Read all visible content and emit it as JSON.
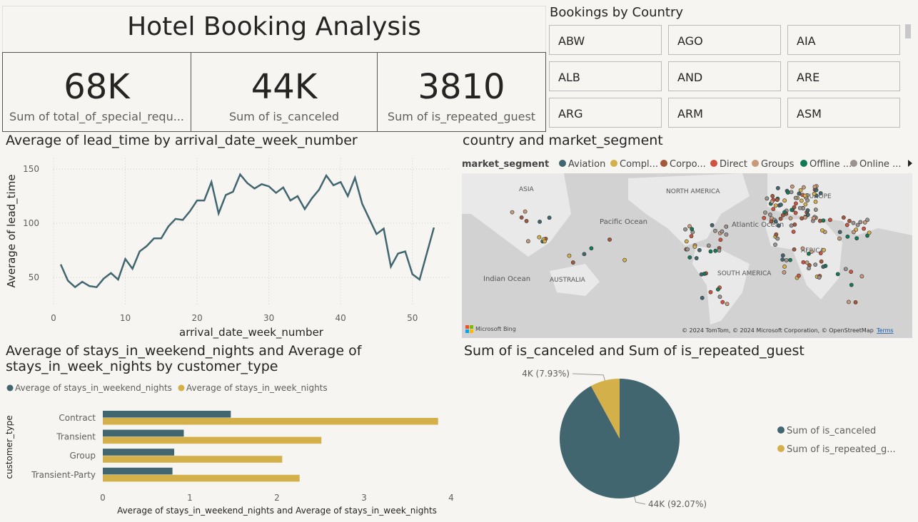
{
  "title": "Hotel Booking Analysis",
  "cards": [
    {
      "value": "68K",
      "label": "Sum of total_of_special_requ..."
    },
    {
      "value": "44K",
      "label": "Sum of is_canceled"
    },
    {
      "value": "3810",
      "label": "Sum of is_repeated_guest"
    }
  ],
  "slicer": {
    "title": "Bookings by Country",
    "items": [
      "ABW",
      "AGO",
      "AIA",
      "ALB",
      "AND",
      "ARE",
      "ARG",
      "ARM",
      "ASM"
    ]
  },
  "map": {
    "title": "country and market_segment",
    "legend_title": "market_segment",
    "legend": [
      {
        "name": "Aviation",
        "color": "#41666f"
      },
      {
        "name": "Compl...",
        "color": "#d4b04a"
      },
      {
        "name": "Corpo...",
        "color": "#a5573a"
      },
      {
        "name": "Direct",
        "color": "#d1533f"
      },
      {
        "name": "Groups",
        "color": "#c8997a"
      },
      {
        "name": "Offline ...",
        "color": "#127a55"
      },
      {
        "name": "Online ...",
        "color": "#9a9390"
      }
    ],
    "labels": [
      "ASIA",
      "NORTH AMERICA",
      "EUROPE",
      "Pacific Ocean",
      "Atlantic Ocean",
      "AFRICA",
      "Indian Ocean",
      "AUSTRALIA",
      "SOUTH AMERICA"
    ],
    "attribution": "© 2024 TomTom, © 2024 Microsoft Corporation, © OpenStreetMap",
    "terms": "Terms",
    "provider": "Microsoft Bing"
  },
  "chart_data": [
    {
      "type": "line",
      "title": "Average of lead_time by arrival_date_week_number",
      "x_label": "arrival_date_week_number",
      "y_label": "Average of lead_time",
      "color": "#41666f",
      "grid": true,
      "x": [
        1,
        2,
        3,
        4,
        5,
        6,
        7,
        8,
        9,
        10,
        11,
        12,
        13,
        14,
        15,
        16,
        17,
        18,
        19,
        20,
        21,
        22,
        23,
        24,
        25,
        26,
        27,
        28,
        29,
        30,
        31,
        32,
        33,
        34,
        35,
        36,
        37,
        38,
        39,
        40,
        41,
        42,
        43,
        44,
        45,
        46,
        47,
        48,
        49,
        50,
        51,
        52,
        53
      ],
      "values": [
        62,
        47,
        41,
        46,
        42,
        41,
        49,
        54,
        48,
        67,
        58,
        74,
        79,
        86,
        86,
        97,
        104,
        103,
        111,
        121,
        121,
        138,
        109,
        126,
        129,
        145,
        137,
        132,
        136,
        134,
        128,
        133,
        121,
        125,
        113,
        123,
        131,
        144,
        135,
        138,
        125,
        142,
        118,
        104,
        90,
        95,
        60,
        72,
        74,
        53,
        48,
        72,
        96
      ],
      "xlim": [
        0,
        55
      ],
      "xticks": [
        0,
        10,
        20,
        30,
        40,
        50
      ],
      "ylim": [
        25,
        160
      ],
      "yticks": [
        50,
        100,
        150
      ]
    },
    {
      "type": "hbar",
      "title": "Average of stays_in_weekend_nights and Average of stays_in_week_nights by customer_type",
      "x_label": "Average of stays_in_weekend_nights and Average of stays_in_week_nights",
      "y_label": "customer_type",
      "categories": [
        "Contract",
        "Transient",
        "Group",
        "Transient-Party"
      ],
      "series": [
        {
          "name": "Average of stays_in_weekend_nights",
          "color": "#41666f",
          "values": [
            1.47,
            0.93,
            0.82,
            0.8
          ]
        },
        {
          "name": "Average of stays_in_week_nights",
          "color": "#d4b04a",
          "values": [
            3.85,
            2.51,
            2.06,
            2.26
          ]
        }
      ],
      "xlim": [
        0,
        4
      ],
      "xticks": [
        0,
        1,
        2,
        3,
        4
      ]
    },
    {
      "type": "pie",
      "title": "Sum of is_canceled and Sum of is_repeated_guest",
      "categories": [
        "Sum of is_canceled",
        "Sum of is_repeated_g..."
      ],
      "colors": [
        "#41666f",
        "#d4b04a"
      ],
      "values": [
        44224,
        3810
      ],
      "value_labels": [
        "44K (92.07%)",
        "4K (7.93%)"
      ]
    }
  ]
}
